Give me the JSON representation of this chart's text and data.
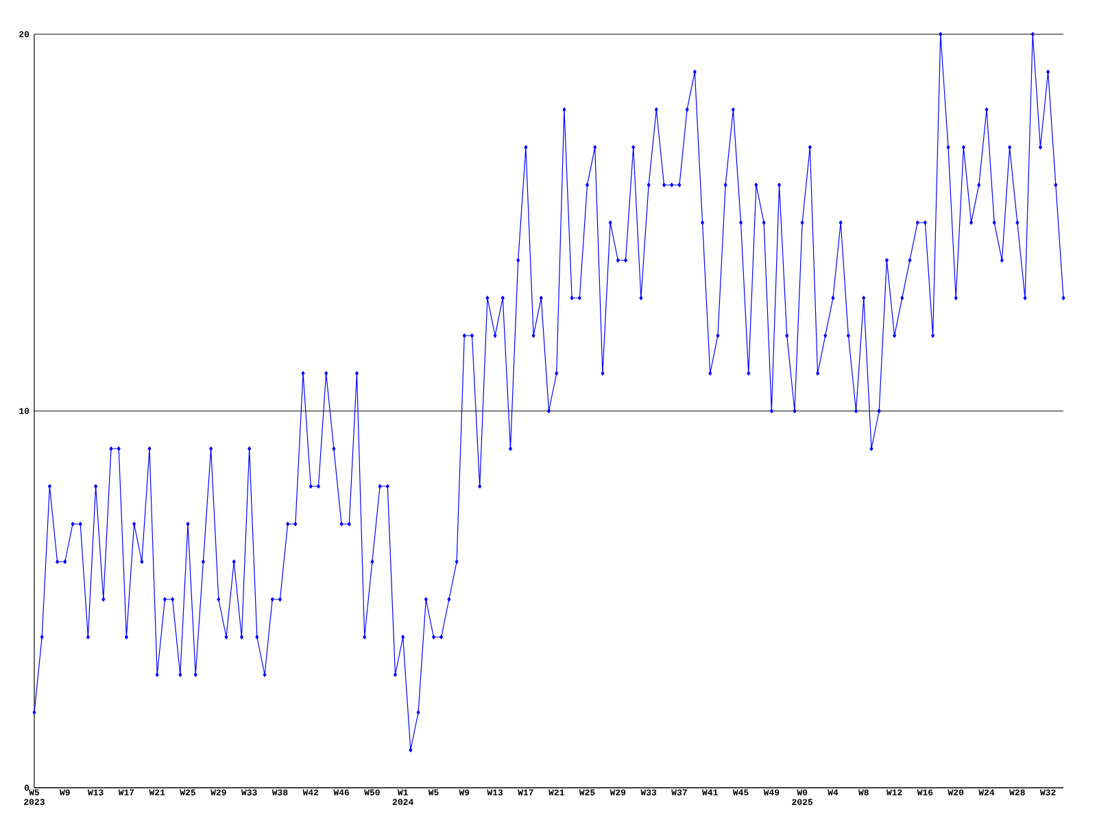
{
  "chart_data": {
    "type": "line",
    "categories": [
      "W5 2023",
      null,
      null,
      null,
      "W9",
      null,
      null,
      null,
      "W13",
      null,
      null,
      null,
      "W17",
      null,
      null,
      null,
      "W21",
      null,
      null,
      null,
      "W25",
      null,
      null,
      null,
      "W29",
      null,
      null,
      null,
      "W33",
      null,
      null,
      null,
      "W38",
      null,
      null,
      null,
      "W42",
      null,
      null,
      null,
      "W46",
      null,
      null,
      null,
      "W50",
      null,
      null,
      null,
      "W1 2024",
      null,
      null,
      null,
      "W5",
      null,
      null,
      null,
      "W9",
      null,
      null,
      null,
      "W13",
      null,
      null,
      null,
      "W17",
      null,
      null,
      null,
      "W21",
      null,
      null,
      null,
      "W25",
      null,
      null,
      null,
      "W29",
      null,
      null,
      null,
      "W33",
      null,
      null,
      null,
      "W37",
      null,
      null,
      null,
      "W41",
      null,
      null,
      null,
      "W45",
      null,
      null,
      null,
      "W49",
      null,
      null,
      null,
      "W0 2025",
      null,
      null,
      null,
      "W4",
      null,
      null,
      null,
      "W8",
      null,
      null,
      null,
      "W12",
      null,
      null,
      null,
      "W16",
      null,
      null,
      null,
      "W20",
      null,
      null,
      null,
      "W24",
      null,
      null,
      null,
      "W28",
      null,
      null,
      null,
      "W32",
      null,
      null
    ],
    "values": [
      2,
      4,
      8,
      6,
      6,
      7,
      7,
      4,
      8,
      5,
      9,
      9,
      4,
      7,
      6,
      9,
      3,
      5,
      5,
      3,
      7,
      3,
      6,
      9,
      5,
      4,
      6,
      4,
      9,
      4,
      3,
      5,
      5,
      7,
      7,
      11,
      8,
      8,
      11,
      9,
      7,
      7,
      11,
      4,
      6,
      8,
      8,
      3,
      4,
      1,
      2,
      5,
      4,
      4,
      5,
      6,
      12,
      12,
      8,
      13,
      12,
      13,
      9,
      14,
      17,
      12,
      13,
      10,
      11,
      18,
      13,
      13,
      16,
      17,
      11,
      15,
      14,
      14,
      17,
      13,
      16,
      18,
      16,
      16,
      16,
      18,
      19,
      15,
      11,
      12,
      16,
      18,
      15,
      11,
      16,
      15,
      10,
      16,
      12,
      10,
      15,
      17,
      11,
      12,
      13,
      15,
      12,
      10,
      13,
      9,
      10,
      14,
      12,
      13,
      14,
      15,
      15,
      12,
      20,
      17,
      13,
      17,
      15,
      16,
      18,
      15,
      14,
      17,
      15,
      13,
      20,
      17,
      19,
      16,
      13
    ],
    "color": "#0000ff",
    "marker": "diamond",
    "grid": "y",
    "ylim": [
      0,
      20
    ],
    "yticks": [
      0,
      10,
      20
    ]
  }
}
